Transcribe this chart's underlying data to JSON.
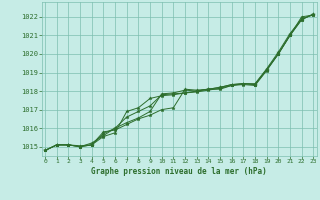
{
  "title": "Graphe pression niveau de la mer (hPa)",
  "x_labels": [
    "0",
    "1",
    "2",
    "3",
    "4",
    "5",
    "6",
    "7",
    "8",
    "9",
    "10",
    "11",
    "12",
    "13",
    "14",
    "15",
    "16",
    "17",
    "18",
    "19",
    "20",
    "21",
    "22",
    "23"
  ],
  "xlim": [
    -0.3,
    23.3
  ],
  "ylim": [
    1014.5,
    1022.8
  ],
  "yticks": [
    1015,
    1016,
    1017,
    1018,
    1019,
    1020,
    1021,
    1022
  ],
  "bg_color": "#c6ece6",
  "grid_color": "#7dbfb0",
  "line_color": "#2d6e2d",
  "series": [
    [
      1014.8,
      1015.1,
      1015.1,
      1015.0,
      1015.1,
      1015.8,
      1015.9,
      1016.2,
      1016.5,
      1016.7,
      1017.0,
      1017.1,
      1018.1,
      1018.05,
      1018.1,
      1018.1,
      1018.3,
      1018.35,
      1018.3,
      1019.1,
      1020.0,
      1021.0,
      1022.0,
      1022.1
    ],
    [
      1014.8,
      1015.1,
      1015.1,
      1015.0,
      1015.2,
      1015.6,
      1016.0,
      1016.6,
      1016.9,
      1017.2,
      1017.8,
      1017.85,
      1017.9,
      1018.0,
      1018.1,
      1018.2,
      1018.35,
      1018.4,
      1018.4,
      1019.2,
      1020.1,
      1021.1,
      1021.9,
      1022.1
    ],
    [
      1014.8,
      1015.1,
      1015.1,
      1015.05,
      1015.1,
      1015.7,
      1016.0,
      1016.3,
      1016.55,
      1016.9,
      1017.85,
      1017.9,
      1018.05,
      1018.0,
      1018.1,
      1018.2,
      1018.35,
      1018.4,
      1018.35,
      1019.15,
      1020.0,
      1021.0,
      1021.85,
      1022.15
    ],
    [
      1014.8,
      1015.1,
      1015.1,
      1015.0,
      1015.1,
      1015.55,
      1015.75,
      1016.9,
      1017.1,
      1017.6,
      1017.75,
      1017.8,
      1017.9,
      1017.95,
      1018.05,
      1018.15,
      1018.3,
      1018.4,
      1018.35,
      1019.15,
      1020.0,
      1021.0,
      1021.85,
      1022.15
    ]
  ]
}
